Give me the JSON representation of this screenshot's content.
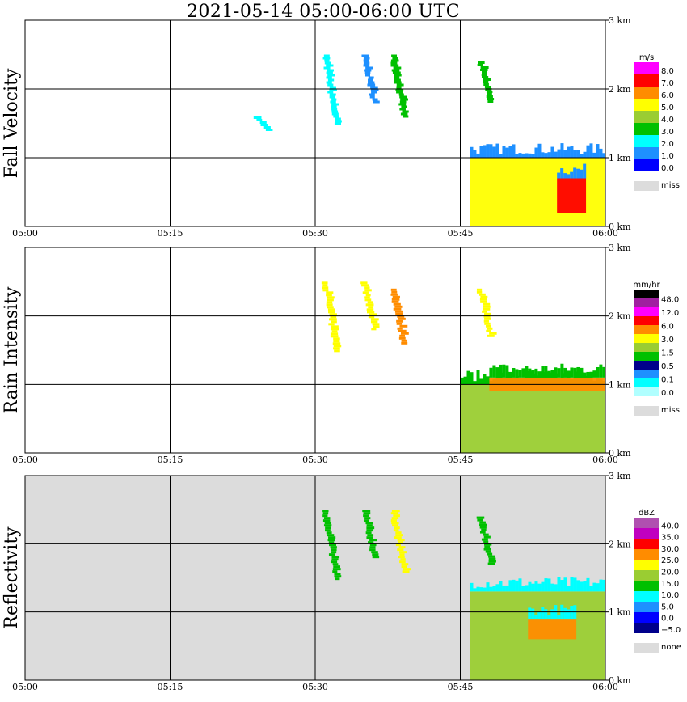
{
  "title": "2021-05-14   05:00-06:00 UTC",
  "x_ticks": [
    "05:00",
    "05:15",
    "05:30",
    "05:45",
    "06:00"
  ],
  "y_ticks": [
    "0 km",
    "1 km",
    "2 km",
    "3 km"
  ],
  "colors": {
    "missing": "#dcdcdc",
    "frame": "#000000",
    "background": "#ffffff"
  },
  "chart_data": [
    {
      "type": "heatmap",
      "title": "Fall Velocity",
      "xlim": [
        "05:00",
        "06:00"
      ],
      "ylim_km": [
        0,
        3.0
      ],
      "colorbar": {
        "unit": "m/s",
        "levels": [
          "8.0",
          "7.0",
          "6.0",
          "5.0",
          "4.0",
          "3.0",
          "2.0",
          "1.0",
          "0.0"
        ],
        "colors": [
          "#ff00ff",
          "#ff0000",
          "#ff8c00",
          "#ffff00",
          "#9acd32",
          "#00c000",
          "#00ffff",
          "#1e90ff",
          "#0000ff"
        ],
        "missing_label": "miss"
      },
      "features": [
        {
          "t": "05:24",
          "z_km": [
            1.4,
            1.6
          ],
          "value": 2.0
        },
        {
          "t": "05:31",
          "z_km": [
            1.5,
            2.5
          ],
          "value": 2.0
        },
        {
          "t": "05:35",
          "z_km": [
            1.8,
            2.5
          ],
          "value": 1.0
        },
        {
          "t": "05:38",
          "z_km": [
            1.6,
            2.5
          ],
          "value": 3.0
        },
        {
          "t": "05:47",
          "z_km": [
            1.8,
            2.4
          ],
          "value": 3.0
        },
        {
          "t": "05:46-06:00",
          "z_km": [
            0.0,
            1.0
          ],
          "value": 5.0
        },
        {
          "t": "05:55-05:58",
          "z_km": [
            0.2,
            0.7
          ],
          "value": 7.0
        }
      ]
    },
    {
      "type": "heatmap",
      "title": "Rain Intensity",
      "xlim": [
        "05:00",
        "06:00"
      ],
      "ylim_km": [
        0,
        3.0
      ],
      "colorbar": {
        "unit": "mm/hr",
        "levels": [
          "48.0",
          "12.0",
          "6.0",
          "3.0",
          "1.5",
          "0.5",
          "0.1",
          "0.0"
        ],
        "colors": [
          "#000000",
          "#a020a0",
          "#ff00ff",
          "#ff0000",
          "#ff8c00",
          "#ffff00",
          "#9acd32",
          "#00c000",
          "#00008b",
          "#1e90ff",
          "#00ffff",
          "#b0ffff"
        ],
        "missing_label": "miss"
      },
      "features": [
        {
          "t": "05:31",
          "z_km": [
            1.5,
            2.5
          ],
          "value": 0.5
        },
        {
          "t": "05:35",
          "z_km": [
            1.8,
            2.5
          ],
          "value": 0.5
        },
        {
          "t": "05:38",
          "z_km": [
            1.6,
            2.4
          ],
          "value": 1.5
        },
        {
          "t": "05:47",
          "z_km": [
            1.7,
            2.4
          ],
          "value": 0.5
        },
        {
          "t": "05:45-06:00",
          "z_km": [
            0.0,
            1.0
          ],
          "value": 0.1
        },
        {
          "t": "05:48-06:00",
          "z_km": [
            0.9,
            1.1
          ],
          "value": 1.5
        }
      ]
    },
    {
      "type": "heatmap",
      "title": "Reflectivity",
      "xlim": [
        "05:00",
        "06:00"
      ],
      "ylim_km": [
        0,
        3.0
      ],
      "colorbar": {
        "unit": "dBZ",
        "levels": [
          "40.0",
          "35.0",
          "30.0",
          "25.0",
          "20.0",
          "15.0",
          "10.0",
          "5.0",
          "0.0",
          "−5.0"
        ],
        "colors": [
          "#b050b0",
          "#c000c0",
          "#ff0000",
          "#ff8c00",
          "#ffff00",
          "#9acd32",
          "#00c000",
          "#00ffff",
          "#1e90ff",
          "#0000ff",
          "#00008b"
        ],
        "missing_label": "none"
      },
      "features": [
        {
          "t": "05:31",
          "z_km": [
            1.5,
            2.5
          ],
          "value": 10.0
        },
        {
          "t": "05:35",
          "z_km": [
            1.8,
            2.5
          ],
          "value": 10.0
        },
        {
          "t": "05:38",
          "z_km": [
            1.6,
            2.5
          ],
          "value": 20.0
        },
        {
          "t": "05:47",
          "z_km": [
            1.7,
            2.4
          ],
          "value": 10.0
        },
        {
          "t": "05:46-06:00",
          "z_km": [
            0.0,
            1.3
          ],
          "value": 15.0
        },
        {
          "t": "05:52-05:57",
          "z_km": [
            0.6,
            0.9
          ],
          "value": 25.0
        }
      ]
    }
  ]
}
